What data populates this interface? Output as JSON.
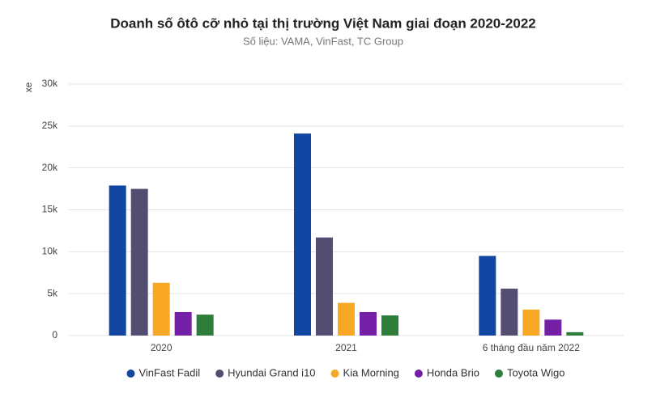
{
  "chart_data": {
    "type": "bar",
    "title": "Doanh số ôtô cỡ nhỏ tại thị trường Việt Nam giai đoạn 2020-2022",
    "subtitle": "Số liệu: VAMA, VinFast, TC Group",
    "y_label": "xe",
    "categories": [
      "2020",
      "2021",
      "6 tháng đầu năm 2022"
    ],
    "series": [
      {
        "name": "VinFast Fadil",
        "color": "#1246a3",
        "values": [
          17900,
          24100,
          9500
        ]
      },
      {
        "name": "Hyundai Grand i10",
        "color": "#544d72",
        "values": [
          17500,
          11700,
          5600
        ]
      },
      {
        "name": "Kia Morning",
        "color": "#f9a825",
        "values": [
          6300,
          3900,
          3100
        ]
      },
      {
        "name": "Honda Brio",
        "color": "#7420a6",
        "values": [
          2800,
          2800,
          1900
        ]
      },
      {
        "name": "Toyota Wigo",
        "color": "#2e7d3a",
        "values": [
          2500,
          2400,
          400
        ]
      }
    ],
    "ylim": [
      0,
      30000
    ],
    "yticks": [
      0,
      {
        "value": 5000,
        "label": "5k"
      },
      {
        "value": 10000,
        "label": "10k"
      },
      {
        "value": 15000,
        "label": "15k"
      },
      {
        "value": 20000,
        "label": "20k"
      },
      {
        "value": 25000,
        "label": "25k"
      },
      {
        "value": 30000,
        "label": "30k"
      }
    ],
    "grid": true
  }
}
